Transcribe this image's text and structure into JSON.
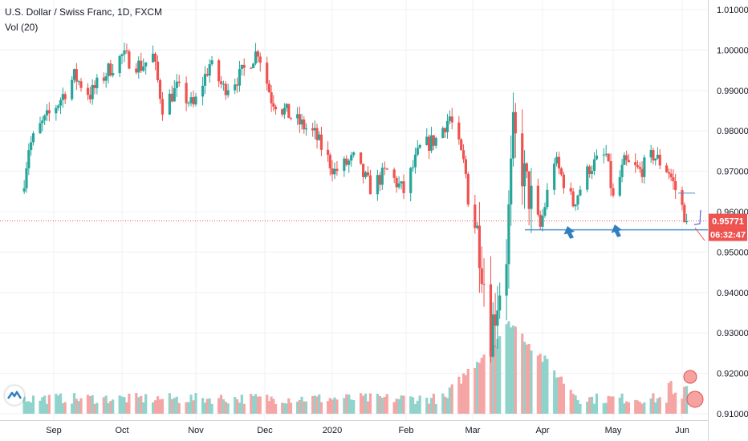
{
  "legend": {
    "symbol": "U.S. Dollar / Swiss Franc, 1D, FXCM",
    "volume": "Vol (20)"
  },
  "price_tags": {
    "last_price": "0.95771",
    "countdown": "06:32:47"
  },
  "colors": {
    "up": "#26a69a",
    "down": "#ef5350",
    "vol_up": "#8fd3cb",
    "vol_down": "#f5a5a4",
    "annotation": "#2f7fc1",
    "price_line": "#ef5350"
  },
  "chart_data": {
    "type": "candlestick",
    "title": "U.S. Dollar / Swiss Franc, 1D, FXCM",
    "indicator": "Vol (20)",
    "x_tick_labels": [
      "Sep",
      "Oct",
      "Nov",
      "Dec",
      "2020",
      "Feb",
      "Mar",
      "Apr",
      "May",
      "Jun"
    ],
    "y_tick_labels": [
      "1.01000",
      "1.00000",
      "0.99000",
      "0.98000",
      "0.97000",
      "0.96000",
      "0.95000",
      "0.94000",
      "0.93000",
      "0.92000",
      "0.91000"
    ],
    "ylim": [
      0.9095,
      1.0125
    ],
    "last_price": 0.95771,
    "support_level": 0.9555,
    "grid": true,
    "anchors": [
      {
        "date": "Aug 19",
        "close": 0.968
      },
      {
        "date": "Aug 21",
        "close": 0.976
      },
      {
        "date": "Aug 26",
        "close": 0.981
      },
      {
        "date": "Sep 03",
        "close": 0.987
      },
      {
        "date": "Sep 10",
        "close": 0.9935
      },
      {
        "date": "Sep 17",
        "close": 0.989
      },
      {
        "date": "Sep 25",
        "close": 0.995
      },
      {
        "date": "Oct 01",
        "close": 0.9985
      },
      {
        "date": "Oct 09",
        "close": 0.996
      },
      {
        "date": "Oct 14",
        "close": 0.9985
      },
      {
        "date": "Oct 18",
        "close": 0.986
      },
      {
        "date": "Oct 24",
        "close": 0.9905
      },
      {
        "date": "Oct 31",
        "close": 0.986
      },
      {
        "date": "Nov 07",
        "close": 0.9965
      },
      {
        "date": "Nov 13",
        "close": 0.9905
      },
      {
        "date": "Nov 20",
        "close": 0.9935
      },
      {
        "date": "Nov 28",
        "close": 1.0
      },
      {
        "date": "Dec 04",
        "close": 0.988
      },
      {
        "date": "Dec 13",
        "close": 0.9835
      },
      {
        "date": "Dec 24",
        "close": 0.979
      },
      {
        "date": "Jan 02",
        "close": 0.97
      },
      {
        "date": "Jan 10",
        "close": 0.973
      },
      {
        "date": "Jan 17",
        "close": 0.966
      },
      {
        "date": "Jan 24",
        "close": 0.97
      },
      {
        "date": "Jan 31",
        "close": 0.965
      },
      {
        "date": "Feb 07",
        "close": 0.9755
      },
      {
        "date": "Feb 14",
        "close": 0.978
      },
      {
        "date": "Feb 20",
        "close": 0.9835
      },
      {
        "date": "Feb 26",
        "close": 0.972
      },
      {
        "date": "Mar 04",
        "close": 0.952
      },
      {
        "date": "Mar 09",
        "close": 0.93
      },
      {
        "date": "Mar 16",
        "close": 0.95
      },
      {
        "date": "Mar 19",
        "close": 0.979
      },
      {
        "date": "Mar 25",
        "close": 0.966
      },
      {
        "date": "Mar 31",
        "close": 0.956
      },
      {
        "date": "Apr 06",
        "close": 0.973
      },
      {
        "date": "Apr 14",
        "close": 0.962
      },
      {
        "date": "Apr 21",
        "close": 0.971
      },
      {
        "date": "Apr 28",
        "close": 0.974
      },
      {
        "date": "May 01",
        "close": 0.963
      },
      {
        "date": "May 06",
        "close": 0.972
      },
      {
        "date": "May 13",
        "close": 0.97
      },
      {
        "date": "May 19",
        "close": 0.974
      },
      {
        "date": "May 26",
        "close": 0.97
      },
      {
        "date": "Jun 01",
        "close": 0.961
      },
      {
        "date": "Jun 03",
        "close": 0.9577
      }
    ]
  }
}
